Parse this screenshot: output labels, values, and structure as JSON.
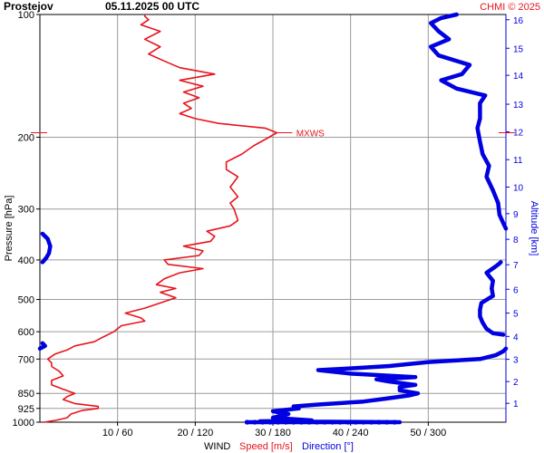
{
  "header": {
    "station": "Prostejov",
    "datetime": "05.11.2025 00 UTC",
    "credit": "CHMI © 2025"
  },
  "colors": {
    "speed": "#e8141c",
    "direction": "#0000e0",
    "grid": "#9c9c9c",
    "axis_text": "#000000"
  },
  "chart_data": {
    "type": "line",
    "title": "Prostejov 05.11.2025 00 UTC",
    "ylabel_left": "Pressure [hPa]",
    "ylabel_right": "Altitude [km]",
    "xlabel_parts": [
      "WIND",
      "Speed [m/s]",
      "Direction [°]"
    ],
    "y_scale": "log",
    "ylim": [
      1000,
      100
    ],
    "pressure_ticks": [
      100,
      200,
      300,
      400,
      500,
      600,
      700,
      850,
      925,
      1000
    ],
    "altitude_ticks": [
      1,
      2,
      3,
      4,
      5,
      6,
      7,
      8,
      9,
      10,
      11,
      12,
      13,
      14,
      15,
      16
    ],
    "altitude_tick_pressure": [
      899,
      795,
      701,
      616,
      540,
      472,
      411,
      356,
      308,
      265,
      227,
      194,
      166,
      141,
      121,
      103
    ],
    "x_speed_range": [
      0,
      60
    ],
    "x_direction_range": [
      0,
      360
    ],
    "x_ticks": [
      "10 / 60",
      "20 / 120",
      "30 / 180",
      "40 / 240",
      "50 / 300"
    ],
    "x_tick_speeds": [
      10,
      20,
      30,
      40,
      50
    ],
    "annotations": [
      {
        "text": "MXWS",
        "pressure": 195
      }
    ],
    "series": [
      {
        "name": "Speed [m/s]",
        "unit": "m/s",
        "points": [
          {
            "p": 1000,
            "v": 0.5
          },
          {
            "p": 990,
            "v": 2
          },
          {
            "p": 975,
            "v": 3.5
          },
          {
            "p": 955,
            "v": 4
          },
          {
            "p": 935,
            "v": 5.5
          },
          {
            "p": 925,
            "v": 7.5
          },
          {
            "p": 915,
            "v": 7.5
          },
          {
            "p": 900,
            "v": 4.5
          },
          {
            "p": 880,
            "v": 3
          },
          {
            "p": 865,
            "v": 3.5
          },
          {
            "p": 850,
            "v": 4.5
          },
          {
            "p": 830,
            "v": 3
          },
          {
            "p": 810,
            "v": 1.5
          },
          {
            "p": 790,
            "v": 1.5
          },
          {
            "p": 770,
            "v": 3
          },
          {
            "p": 750,
            "v": 2.5
          },
          {
            "p": 730,
            "v": 1.5
          },
          {
            "p": 715,
            "v": 1.5
          },
          {
            "p": 700,
            "v": 1
          },
          {
            "p": 680,
            "v": 2
          },
          {
            "p": 665,
            "v": 3.5
          },
          {
            "p": 650,
            "v": 4.5
          },
          {
            "p": 635,
            "v": 7
          },
          {
            "p": 620,
            "v": 8
          },
          {
            "p": 600,
            "v": 9.5
          },
          {
            "p": 580,
            "v": 10.5
          },
          {
            "p": 565,
            "v": 13.5
          },
          {
            "p": 555,
            "v": 13
          },
          {
            "p": 540,
            "v": 11
          },
          {
            "p": 525,
            "v": 13.5
          },
          {
            "p": 510,
            "v": 15.5
          },
          {
            "p": 495,
            "v": 17.5
          },
          {
            "p": 480,
            "v": 15.5
          },
          {
            "p": 470,
            "v": 17.5
          },
          {
            "p": 460,
            "v": 15
          },
          {
            "p": 445,
            "v": 16
          },
          {
            "p": 430,
            "v": 18
          },
          {
            "p": 420,
            "v": 21
          },
          {
            "p": 410,
            "v": 16.5
          },
          {
            "p": 400,
            "v": 16
          },
          {
            "p": 390,
            "v": 20.5
          },
          {
            "p": 380,
            "v": 21
          },
          {
            "p": 370,
            "v": 18.5
          },
          {
            "p": 360,
            "v": 22
          },
          {
            "p": 350,
            "v": 22.5
          },
          {
            "p": 340,
            "v": 21.5
          },
          {
            "p": 330,
            "v": 24.5
          },
          {
            "p": 320,
            "v": 25.5
          },
          {
            "p": 300,
            "v": 25
          },
          {
            "p": 290,
            "v": 24.5
          },
          {
            "p": 280,
            "v": 25.5
          },
          {
            "p": 265,
            "v": 24.5
          },
          {
            "p": 250,
            "v": 25.5
          },
          {
            "p": 240,
            "v": 24
          },
          {
            "p": 230,
            "v": 24
          },
          {
            "p": 220,
            "v": 26
          },
          {
            "p": 210,
            "v": 27.5
          },
          {
            "p": 200,
            "v": 29.5
          },
          {
            "p": 195,
            "v": 30.5
          },
          {
            "p": 190,
            "v": 29
          },
          {
            "p": 185,
            "v": 23
          },
          {
            "p": 180,
            "v": 20
          },
          {
            "p": 175,
            "v": 18
          },
          {
            "p": 170,
            "v": 19.5
          },
          {
            "p": 165,
            "v": 18.5
          },
          {
            "p": 160,
            "v": 20.5
          },
          {
            "p": 155,
            "v": 18.5
          },
          {
            "p": 150,
            "v": 21
          },
          {
            "p": 145,
            "v": 18
          },
          {
            "p": 140,
            "v": 22.5
          },
          {
            "p": 135,
            "v": 18
          },
          {
            "p": 130,
            "v": 16
          },
          {
            "p": 125,
            "v": 14
          },
          {
            "p": 120,
            "v": 15.5
          },
          {
            "p": 115,
            "v": 13.5
          },
          {
            "p": 110,
            "v": 15.5
          },
          {
            "p": 106,
            "v": 13
          },
          {
            "p": 103,
            "v": 14
          },
          {
            "p": 101,
            "v": 13.5
          },
          {
            "p": 100,
            "v": 13.5
          }
        ]
      },
      {
        "name": "Direction [°]",
        "unit": "°",
        "segments": [
          [
            {
              "p": 1000,
              "v": 160
            },
            {
              "p": 1000,
              "v": 278
            },
            {
              "p": 995,
              "v": 170
            },
            {
              "p": 990,
              "v": 210
            },
            {
              "p": 975,
              "v": 180
            },
            {
              "p": 955,
              "v": 192
            },
            {
              "p": 940,
              "v": 180
            },
            {
              "p": 925,
              "v": 200
            },
            {
              "p": 915,
              "v": 196
            },
            {
              "p": 905,
              "v": 215
            },
            {
              "p": 890,
              "v": 250
            },
            {
              "p": 875,
              "v": 268
            },
            {
              "p": 860,
              "v": 285
            },
            {
              "p": 850,
              "v": 292
            },
            {
              "p": 835,
              "v": 278
            },
            {
              "p": 820,
              "v": 278
            },
            {
              "p": 810,
              "v": 290
            },
            {
              "p": 795,
              "v": 270
            },
            {
              "p": 785,
              "v": 260
            },
            {
              "p": 775,
              "v": 290
            },
            {
              "p": 760,
              "v": 240
            },
            {
              "p": 745,
              "v": 215
            },
            {
              "p": 738,
              "v": 240
            },
            {
              "p": 728,
              "v": 270
            },
            {
              "p": 712,
              "v": 300
            },
            {
              "p": 700,
              "v": 340
            },
            {
              "p": 685,
              "v": 352
            },
            {
              "p": 670,
              "v": 358
            },
            {
              "p": 660,
              "v": 360
            }
          ],
          [
            {
              "p": 660,
              "v": 0
            },
            {
              "p": 650,
              "v": 4
            },
            {
              "p": 640,
              "v": 2
            }
          ],
          [
            {
              "p": 610,
              "v": 358
            },
            {
              "p": 605,
              "v": 350
            },
            {
              "p": 590,
              "v": 345
            },
            {
              "p": 570,
              "v": 342
            },
            {
              "p": 550,
              "v": 340
            },
            {
              "p": 530,
              "v": 340
            },
            {
              "p": 510,
              "v": 341
            },
            {
              "p": 490,
              "v": 350
            },
            {
              "p": 470,
              "v": 349
            },
            {
              "p": 450,
              "v": 350
            },
            {
              "p": 430,
              "v": 345
            },
            {
              "p": 415,
              "v": 352
            },
            {
              "p": 408,
              "v": 355
            },
            {
              "p": 405,
              "v": 356
            }
          ],
          [
            {
              "p": 405,
              "v": 2
            },
            {
              "p": 395,
              "v": 5
            },
            {
              "p": 385,
              "v": 7
            },
            {
              "p": 370,
              "v": 8
            },
            {
              "p": 355,
              "v": 6
            },
            {
              "p": 345,
              "v": 2
            }
          ],
          [
            {
              "p": 335,
              "v": 360
            },
            {
              "p": 325,
              "v": 358
            },
            {
              "p": 310,
              "v": 355
            },
            {
              "p": 290,
              "v": 354
            },
            {
              "p": 270,
              "v": 350
            },
            {
              "p": 250,
              "v": 345
            },
            {
              "p": 235,
              "v": 347
            },
            {
              "p": 220,
              "v": 342
            },
            {
              "p": 205,
              "v": 340
            },
            {
              "p": 190,
              "v": 338
            },
            {
              "p": 180,
              "v": 340
            },
            {
              "p": 165,
              "v": 340
            },
            {
              "p": 158,
              "v": 344
            },
            {
              "p": 152,
              "v": 322
            },
            {
              "p": 145,
              "v": 310
            },
            {
              "p": 140,
              "v": 326
            },
            {
              "p": 133,
              "v": 332
            },
            {
              "p": 126,
              "v": 308
            },
            {
              "p": 120,
              "v": 302
            },
            {
              "p": 115,
              "v": 316
            },
            {
              "p": 110,
              "v": 308
            },
            {
              "p": 105,
              "v": 302
            },
            {
              "p": 102,
              "v": 310
            },
            {
              "p": 100,
              "v": 322
            }
          ]
        ]
      }
    ]
  }
}
